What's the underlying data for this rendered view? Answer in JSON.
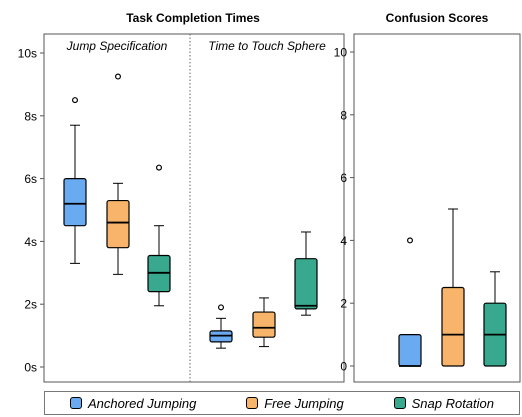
{
  "chart_data": [
    {
      "type": "box",
      "title": "Task Completion Times",
      "ylim": [
        0,
        10
      ],
      "yticks": [
        "0s",
        "2s",
        "4s",
        "6s",
        "8s",
        "10s"
      ],
      "panels": [
        {
          "label": "Jump Specification",
          "boxes": [
            {
              "series": "Anchored Jumping",
              "whisker_low": 3.3,
              "q1": 4.5,
              "median": 5.2,
              "q3": 6.0,
              "whisker_high": 7.7,
              "outliers": [
                8.5
              ]
            },
            {
              "series": "Free Jumping",
              "whisker_low": 2.95,
              "q1": 3.8,
              "median": 4.6,
              "q3": 5.3,
              "whisker_high": 5.85,
              "outliers": [
                9.25
              ]
            },
            {
              "series": "Snap Rotation",
              "whisker_low": 1.95,
              "q1": 2.4,
              "median": 3.0,
              "q3": 3.55,
              "whisker_high": 4.5,
              "outliers": [
                6.35
              ]
            }
          ]
        },
        {
          "label": "Time to Touch Sphere",
          "boxes": [
            {
              "series": "Anchored Jumping",
              "whisker_low": 0.6,
              "q1": 0.8,
              "median": 1.0,
              "q3": 1.15,
              "whisker_high": 1.55,
              "outliers": [
                1.9
              ]
            },
            {
              "series": "Free Jumping",
              "whisker_low": 0.65,
              "q1": 0.95,
              "median": 1.25,
              "q3": 1.75,
              "whisker_high": 2.2,
              "outliers": []
            },
            {
              "series": "Snap Rotation",
              "whisker_low": 1.65,
              "q1": 1.85,
              "median": 1.95,
              "q3": 3.45,
              "whisker_high": 4.3,
              "outliers": []
            }
          ]
        }
      ]
    },
    {
      "type": "box",
      "title": "Confusion Scores",
      "ylim": [
        0,
        10
      ],
      "yticks": [
        "0",
        "2",
        "4",
        "6",
        "8",
        "10"
      ],
      "panels": [
        {
          "label": "",
          "boxes": [
            {
              "series": "Anchored Jumping",
              "whisker_low": 0,
              "q1": 0,
              "median": 0,
              "q3": 1,
              "whisker_high": 1,
              "outliers": [
                4
              ]
            },
            {
              "series": "Free Jumping",
              "whisker_low": 0,
              "q1": 0,
              "median": 1,
              "q3": 2.5,
              "whisker_high": 5,
              "outliers": []
            },
            {
              "series": "Snap Rotation",
              "whisker_low": 0,
              "q1": 0,
              "median": 1,
              "q3": 2,
              "whisker_high": 3,
              "outliers": []
            }
          ]
        }
      ]
    }
  ],
  "legend": [
    {
      "label": "Anchored Jumping",
      "color": "#6aaaf0"
    },
    {
      "label": "Free Jumping",
      "color": "#f7b46a"
    },
    {
      "label": "Snap Rotation",
      "color": "#38a88e"
    }
  ]
}
